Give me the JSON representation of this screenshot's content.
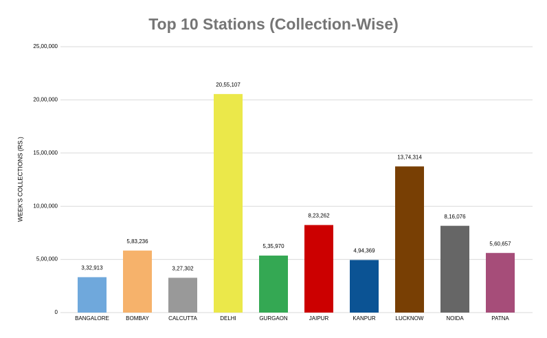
{
  "chart_data": {
    "type": "bar",
    "title": "Top 10 Stations (Collection-Wise)",
    "y_label": "WEEK'S COLLECTIONS (RS.)",
    "categories": [
      "BANGALORE",
      "BOMBAY",
      "CALCUTTA",
      "DELHI",
      "GURGAON",
      "JAIPUR",
      "KANPUR",
      "LUCKNOW",
      "NOIDA",
      "PATNA"
    ],
    "values": [
      332913,
      583236,
      327302,
      2055107,
      535970,
      823262,
      494369,
      1374314,
      816076,
      560657
    ],
    "value_labels": [
      "3,32,913",
      "5,83,236",
      "3,27,302",
      "20,55,107",
      "5,35,970",
      "8,23,262",
      "4,94,369",
      "13,74,314",
      "8,16,076",
      "5,60,657"
    ],
    "colors": [
      "#6fa8dc",
      "#f6b26b",
      "#999999",
      "#ebe84a",
      "#34a853",
      "#cc0000",
      "#0b5394",
      "#783f04",
      "#666666",
      "#a64d79"
    ],
    "ylim": [
      0,
      2500000
    ],
    "yticks": [
      0,
      {
        "value": 500000,
        "label": "5,00,000"
      },
      {
        "value": 1000000,
        "label": "10,00,000"
      },
      {
        "value": 1500000,
        "label": "15,00,000"
      },
      {
        "value": 2000000,
        "label": "20,00,000"
      },
      {
        "value": 2500000,
        "label": "25,00,000"
      }
    ],
    "grid": true
  }
}
